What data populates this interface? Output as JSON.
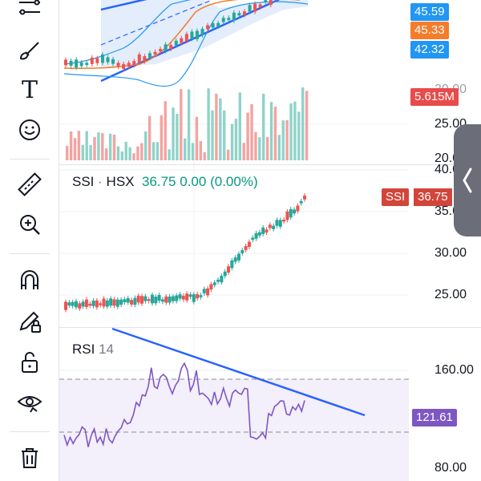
{
  "toolbar": {
    "items": [
      {
        "name": "trend-line-icon"
      },
      {
        "name": "brush-icon"
      },
      {
        "name": "text-icon",
        "glyph": "T"
      },
      {
        "name": "emoji-icon"
      },
      {
        "name": "ruler-icon"
      },
      {
        "name": "zoom-in-icon"
      },
      {
        "name": "magnet-icon"
      },
      {
        "name": "pencil-lock-icon"
      },
      {
        "name": "unlock-icon"
      },
      {
        "name": "eye-icon"
      },
      {
        "name": "trash-icon"
      }
    ]
  },
  "top_pane": {
    "axis_labels": [
      "25.00",
      "20.00"
    ],
    "price_tags": [
      {
        "label": "45.59",
        "color": "#2196f3"
      },
      {
        "label": "45.33",
        "color": "#f57c2b"
      },
      {
        "label": "42.32",
        "color": "#2196f3"
      },
      {
        "label": "5.615M",
        "color": "#e84b4b"
      }
    ]
  },
  "main_pane": {
    "symbol": "SSI",
    "separator": "·",
    "exchange": "HSX",
    "last": "36.75",
    "change": "0.00",
    "change_pct": "(0.00%)",
    "axis_labels": [
      "40.00",
      "35.00",
      "30.00",
      "25.00"
    ],
    "price_tag_symbol": "SSI",
    "price_tag_value": "36.75",
    "price_tag_color": "#d1453b"
  },
  "rsi_pane": {
    "name": "RSI",
    "length": "14",
    "axis_labels": [
      "160.00",
      "80.00"
    ],
    "value_tag": "121.61",
    "value_tag_color": "#7e57c2"
  },
  "colors": {
    "up": "#26a69a",
    "down": "#ef5350",
    "trend": "#2962ff",
    "rsi": "#7e57c2",
    "band_fill": "#e3edfb"
  }
}
